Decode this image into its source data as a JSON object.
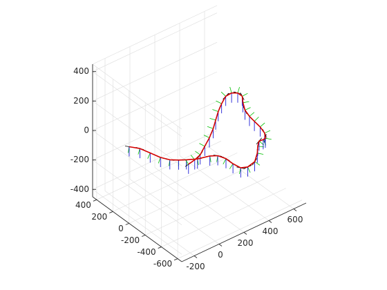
{
  "chart_data": {
    "type": "3d-line",
    "title": "",
    "xlabel": "",
    "ylabel": "",
    "zlabel": "",
    "grid": true,
    "view": "isometric",
    "xlim": [
      -300,
      700
    ],
    "ylim": [
      -650,
      450
    ],
    "zlim": [
      -450,
      450
    ],
    "x_ticks": [
      -200,
      0,
      200,
      400,
      600
    ],
    "y_ticks": [
      -600,
      -400,
      -200,
      0,
      200,
      400
    ],
    "z_ticks": [
      -400,
      -200,
      0,
      200,
      400
    ],
    "series": [
      {
        "type": "trajectory",
        "color": "#d40000",
        "points": [
          [
            -260,
            60,
            30
          ],
          [
            -200,
            20,
            10
          ],
          [
            -150,
            -30,
            -20
          ],
          [
            -100,
            -80,
            -50
          ],
          [
            -50,
            -120,
            -70
          ],
          [
            0,
            -150,
            -80
          ],
          [
            50,
            -170,
            -90
          ],
          [
            120,
            -200,
            -100
          ],
          [
            200,
            -230,
            -100
          ],
          [
            250,
            -250,
            -110
          ],
          [
            290,
            -290,
            -130
          ],
          [
            320,
            -330,
            -160
          ],
          [
            350,
            -380,
            -180
          ],
          [
            380,
            -420,
            -170
          ],
          [
            430,
            -430,
            -150
          ],
          [
            470,
            -400,
            -120
          ],
          [
            500,
            -360,
            -100
          ],
          [
            530,
            -330,
            -90
          ],
          [
            570,
            -320,
            -100
          ],
          [
            600,
            -300,
            -110
          ],
          [
            620,
            -260,
            -100
          ],
          [
            610,
            -220,
            -70
          ],
          [
            590,
            -180,
            -40
          ],
          [
            570,
            -150,
            -10
          ],
          [
            560,
            -110,
            20
          ],
          [
            570,
            -70,
            50
          ],
          [
            590,
            -30,
            70
          ],
          [
            580,
            10,
            80
          ],
          [
            550,
            40,
            80
          ],
          [
            510,
            50,
            70
          ],
          [
            470,
            40,
            40
          ],
          [
            430,
            20,
            10
          ],
          [
            390,
            -10,
            -20
          ],
          [
            350,
            -40,
            -50
          ],
          [
            300,
            -70,
            -80
          ],
          [
            250,
            -90,
            -110
          ],
          [
            200,
            -110,
            -140
          ],
          [
            150,
            -120,
            -150
          ],
          [
            100,
            -120,
            -160
          ]
        ]
      }
    ],
    "frames": {
      "every": 1,
      "axis_colors": {
        "x": "#000000",
        "y": "#00c000",
        "z": "#0000d0"
      }
    }
  }
}
